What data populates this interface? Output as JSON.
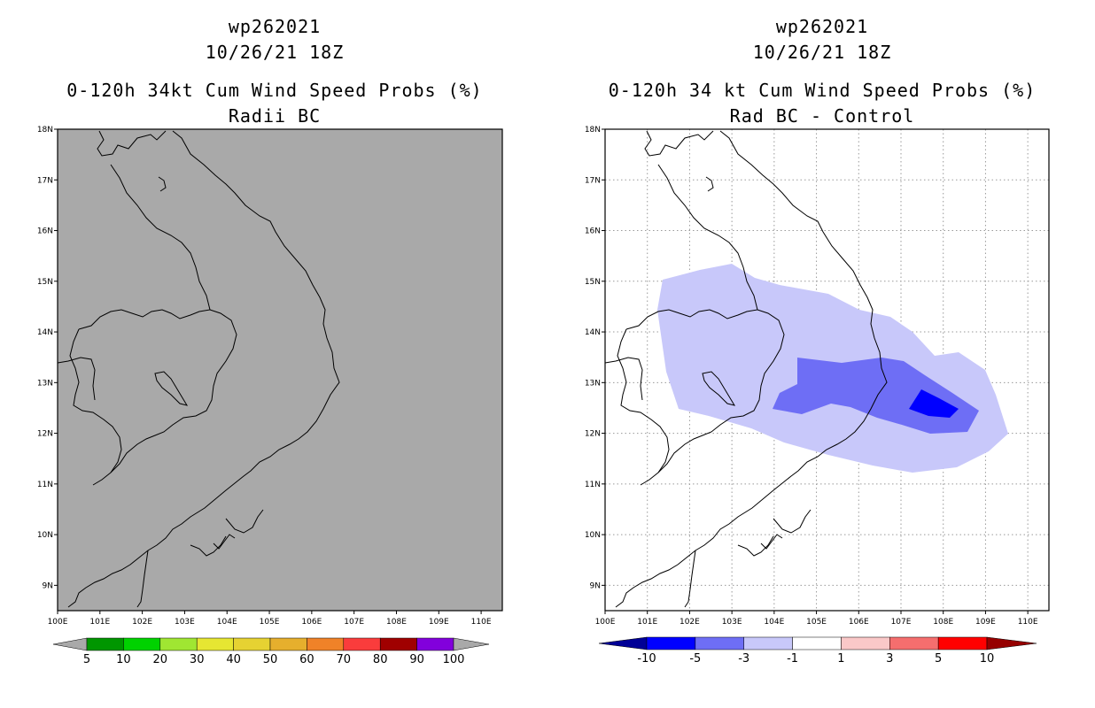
{
  "left_panel": {
    "title_line1": "wp262021",
    "title_line2": "10/26/21 18Z",
    "subtitle_line1": "0-120h 34kt Cum Wind Speed Probs (%)",
    "subtitle_line2": "Radii BC",
    "background_color": "#a9a9a9",
    "colorbar": {
      "labels": [
        "5",
        "10",
        "20",
        "30",
        "40",
        "50",
        "60",
        "70",
        "80",
        "90",
        "100"
      ],
      "colors": [
        "#009600",
        "#00d200",
        "#a0e632",
        "#e6e632",
        "#e6d232",
        "#e6af2d",
        "#f08228",
        "#fa3c3c",
        "#a00000",
        "#8200dc"
      ],
      "end_color": "#a9a9a9"
    }
  },
  "right_panel": {
    "title_line1": "wp262021",
    "title_line2": "10/26/21 18Z",
    "subtitle_line1": "0-120h 34 kt Cum Wind Speed Probs (%)",
    "subtitle_line2": "Rad BC - Control",
    "colorbar": {
      "labels": [
        "-10",
        "-5",
        "-3",
        "-1",
        "1",
        "3",
        "5",
        "10"
      ],
      "colors": [
        "#000096",
        "#0000ff",
        "#6e6ef5",
        "#c8c8fa",
        "#ffffff",
        "#fac8c8",
        "#f56e6e",
        "#ff0000",
        "#960000"
      ]
    },
    "contours": [
      {
        "level": "-1 to -3",
        "color": "#c8c8fa"
      },
      {
        "level": "-3 to -5",
        "color": "#6e6ef5"
      },
      {
        "level": "-5 to -10",
        "color": "#0000ff"
      }
    ]
  },
  "axes": {
    "lat_labels": [
      "18N",
      "17N",
      "16N",
      "15N",
      "14N",
      "13N",
      "12N",
      "11N",
      "10N",
      "9N"
    ],
    "lon_labels": [
      "100E",
      "101E",
      "102E",
      "103E",
      "104E",
      "105E",
      "106E",
      "107E",
      "108E",
      "109E",
      "110E"
    ],
    "lat_range": [
      8.5,
      18
    ],
    "lon_range": [
      100,
      110.5
    ]
  }
}
